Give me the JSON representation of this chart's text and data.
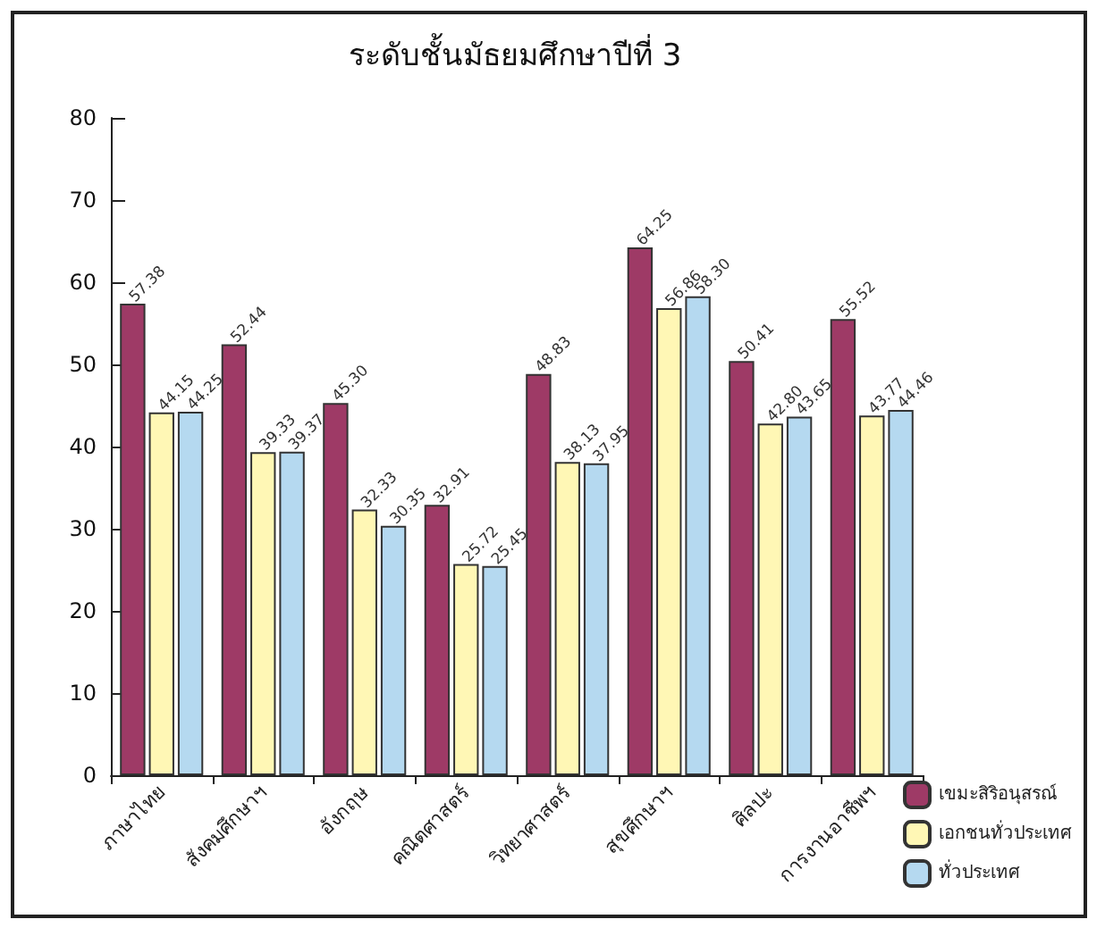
{
  "chart_data": {
    "type": "bar",
    "title": "ระดับชั้นมัธยมศึกษาปีที่ 3",
    "categories": [
      "ภาษาไทย",
      "สังคมศึกษาฯ",
      "อังกฤษ",
      "คณิตศาสตร์",
      "วิทยาศาสตร์",
      "สุขศึกษาฯ",
      "ศิลปะ",
      "การงานอาชีพฯ"
    ],
    "series": [
      {
        "name": "เขมะสิริอนุสรณ์",
        "color": "#9e3a66",
        "values": [
          57.38,
          52.44,
          45.3,
          32.91,
          48.83,
          64.25,
          50.41,
          55.52
        ],
        "value_labels": [
          "57.38",
          "52.44",
          "45.30",
          "32.91",
          "48.83",
          "64.25",
          "50.41",
          "55.52"
        ]
      },
      {
        "name": "เอกชนทั่วประเทศ",
        "color": "#fff7b5",
        "values": [
          44.15,
          39.33,
          32.33,
          25.72,
          38.13,
          56.86,
          42.8,
          43.77
        ],
        "value_labels": [
          "44.15",
          "39.33",
          "32.33",
          "25.72",
          "38.13",
          "56.86",
          "42.80",
          "43.77"
        ]
      },
      {
        "name": "ทั่วประเทศ",
        "color": "#b5d9f0",
        "values": [
          44.25,
          39.37,
          30.35,
          25.45,
          37.95,
          58.3,
          43.65,
          44.46
        ],
        "value_labels": [
          "44.25",
          "39.37",
          "30.35",
          "25.45",
          "37.95",
          "58.30",
          "43.65",
          "44.46"
        ]
      }
    ],
    "ylim": [
      0,
      80
    ],
    "yticks": [
      0,
      10,
      20,
      30,
      40,
      50,
      60,
      70,
      80
    ],
    "grid": false,
    "legend": "bottom right"
  }
}
